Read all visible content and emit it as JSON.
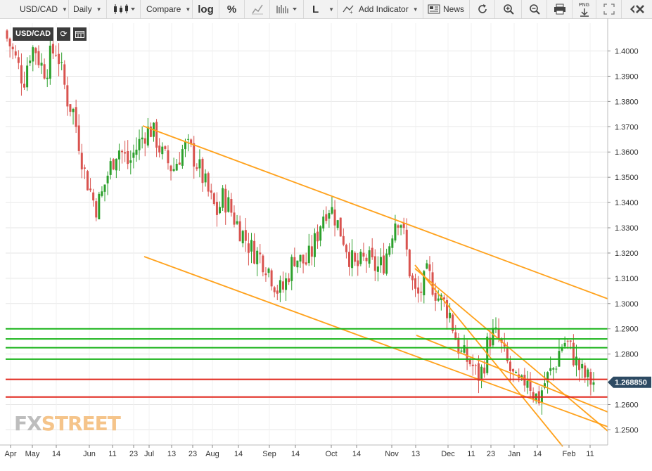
{
  "toolbar": {
    "symbol": "USD/CAD",
    "interval": "Daily",
    "compare": "Compare",
    "log": "log",
    "percent": "%",
    "line_mode": "L",
    "add_indicator": "Add Indicator",
    "news": "News",
    "png": "PNG"
  },
  "badge": {
    "symbol": "USD/CAD"
  },
  "logo": {
    "fx": "FX",
    "street": "STREET"
  },
  "colors": {
    "up": "#2ca02c",
    "down": "#d9534f",
    "trend": "#ffa21d",
    "hline_green": "#18b318",
    "hline_red": "#e0261c",
    "price_tag": "#2d4a63",
    "grid": "#e6e6e6"
  },
  "chart_data": {
    "type": "candlestick",
    "symbol": "USD/CAD",
    "interval": "Daily",
    "y_range": [
      1.244,
      1.411
    ],
    "y_ticks": [
      "1.4000",
      "1.3900",
      "1.3800",
      "1.3700",
      "1.3600",
      "1.3500",
      "1.3400",
      "1.3300",
      "1.3200",
      "1.3100",
      "1.3000",
      "1.2900",
      "1.2800",
      "1.2600",
      "1.2500"
    ],
    "x_labels": [
      "Apr",
      "May",
      "14",
      "Jun",
      "11",
      "23",
      "Jul",
      "13",
      "23",
      "Aug",
      "14",
      "Sep",
      "14",
      "Oct",
      "14",
      "Nov",
      "13",
      "Dec",
      "11",
      "23",
      "Jan",
      "14",
      "Feb",
      "11"
    ],
    "last_price": "1.268850",
    "price_series": [
      1.405,
      1.4,
      1.394,
      1.388,
      1.399,
      1.402,
      1.395,
      1.392,
      1.399,
      1.401,
      1.39,
      1.38,
      1.376,
      1.364,
      1.352,
      1.345,
      1.338,
      1.342,
      1.35,
      1.356,
      1.362,
      1.359,
      1.355,
      1.36,
      1.364,
      1.368,
      1.369,
      1.365,
      1.359,
      1.356,
      1.353,
      1.358,
      1.362,
      1.361,
      1.357,
      1.352,
      1.346,
      1.34,
      1.336,
      1.342,
      1.339,
      1.334,
      1.33,
      1.326,
      1.322,
      1.32,
      1.318,
      1.315,
      1.31,
      1.305,
      1.306,
      1.313,
      1.319,
      1.317,
      1.316,
      1.32,
      1.327,
      1.335,
      1.339,
      1.336,
      1.33,
      1.325,
      1.318,
      1.314,
      1.316,
      1.318,
      1.315,
      1.314,
      1.316,
      1.323,
      1.333,
      1.335,
      1.323,
      1.31,
      1.302,
      1.306,
      1.312,
      1.307,
      1.302,
      1.3,
      1.296,
      1.287,
      1.28,
      1.278,
      1.276,
      1.271,
      1.274,
      1.286,
      1.288,
      1.285,
      1.278,
      1.273,
      1.268,
      1.267,
      1.272,
      1.265,
      1.262,
      1.268,
      1.272,
      1.275,
      1.283,
      1.285,
      1.281,
      1.276,
      1.272,
      1.27,
      1.2688
    ],
    "horizontal_levels": [
      {
        "value": 1.29,
        "color": "green"
      },
      {
        "value": 1.286,
        "color": "green"
      },
      {
        "value": 1.2825,
        "color": "green"
      },
      {
        "value": 1.278,
        "color": "green"
      },
      {
        "value": 1.27,
        "color": "red"
      },
      {
        "value": 1.263,
        "color": "red"
      }
    ]
  }
}
